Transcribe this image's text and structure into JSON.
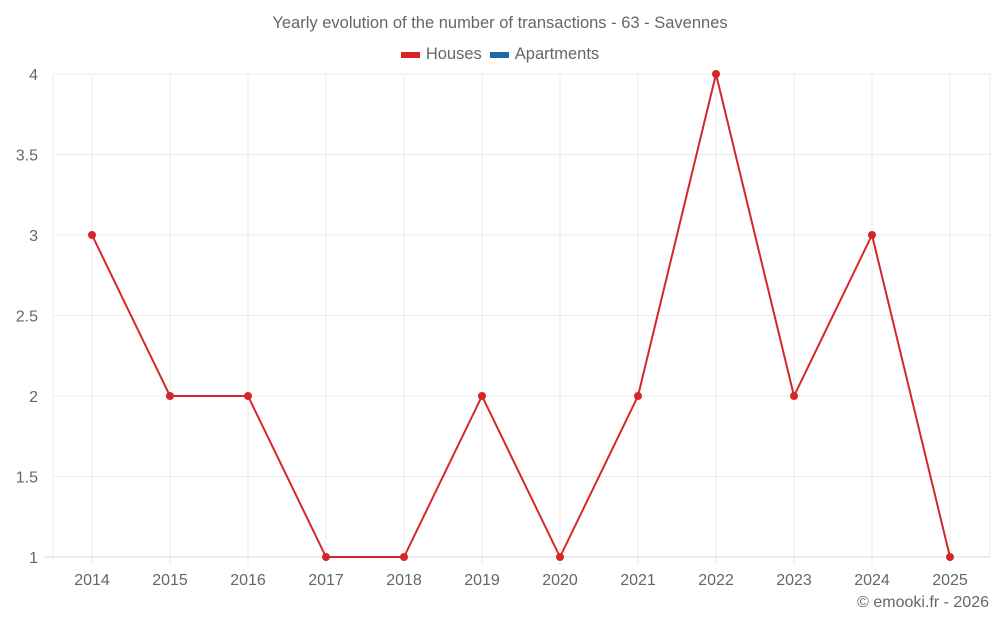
{
  "title": "Yearly evolution of the number of transactions - 63 - Savennes",
  "legend": [
    {
      "label": "Houses",
      "color": "#d62728"
    },
    {
      "label": "Apartments",
      "color": "#1f6aa5"
    }
  ],
  "credit": "© emooki.fr - 2026",
  "colors": {
    "houses": "#d62728",
    "apartments": "#1f6aa5",
    "grid": "#ebebeb",
    "axis": "#d9d9d9",
    "text": "#666666"
  },
  "chart_data": {
    "type": "line",
    "title": "Yearly evolution of the number of transactions - 63 - Savennes",
    "categories": [
      "2014",
      "2015",
      "2016",
      "2017",
      "2018",
      "2019",
      "2020",
      "2021",
      "2022",
      "2023",
      "2024",
      "2025"
    ],
    "series": [
      {
        "name": "Houses",
        "color": "#d62728",
        "values": [
          3,
          2,
          2,
          1,
          1,
          2,
          1,
          2,
          4,
          2,
          3,
          1
        ]
      },
      {
        "name": "Apartments",
        "color": "#1f6aa5",
        "values": []
      }
    ],
    "xlabel": "",
    "ylabel": "",
    "ylim": [
      1,
      4
    ],
    "yticks": [
      "1",
      "1.5",
      "2",
      "2.5",
      "3",
      "3.5",
      "4"
    ],
    "grid": true,
    "legend_position": "top"
  }
}
